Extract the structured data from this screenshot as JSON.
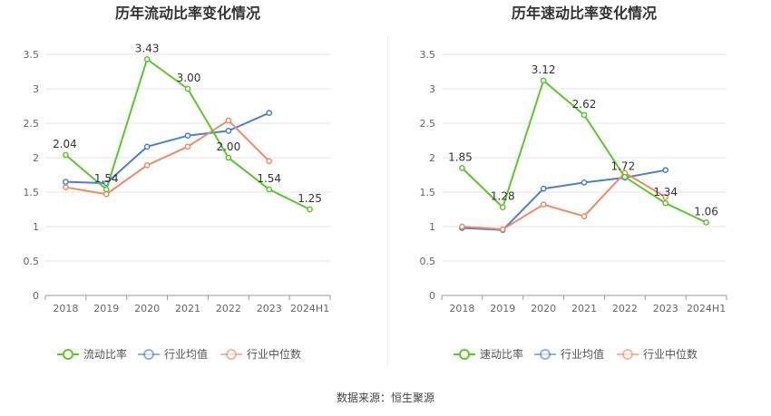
{
  "source_label": "数据来源：恒生聚源",
  "colors": {
    "main": "#5cc72c",
    "avg": "#4a7fd6",
    "median": "#f08a63",
    "grid": "#e6e6e6",
    "axis": "#999999",
    "text": "#666666",
    "title": "#333333"
  },
  "chart_data": [
    {
      "type": "line",
      "title": "历年流动比率变化情况",
      "categories": [
        "2018",
        "2019",
        "2020",
        "2021",
        "2022",
        "2023",
        "2024H1"
      ],
      "ylim": [
        0,
        3.5
      ],
      "yticks": [
        "0",
        "0.5",
        "1",
        "1.5",
        "2",
        "2.5",
        "3",
        "3.5"
      ],
      "xlabel": "",
      "ylabel": "",
      "series": [
        {
          "name": "流动比率",
          "key": "main",
          "values": [
            2.04,
            1.54,
            3.43,
            3.0,
            2.0,
            1.54,
            1.25
          ],
          "labels": [
            "2.04",
            "1.54",
            "3.43",
            "3.00",
            "2.00",
            "1.54",
            "1.25"
          ]
        },
        {
          "name": "行业均值",
          "key": "avg",
          "values": [
            1.65,
            1.63,
            2.16,
            2.32,
            2.39,
            2.65,
            null
          ]
        },
        {
          "name": "行业中位数",
          "key": "median",
          "values": [
            1.57,
            1.47,
            1.89,
            2.16,
            2.54,
            1.95,
            null
          ]
        }
      ]
    },
    {
      "type": "line",
      "title": "历年速动比率变化情况",
      "categories": [
        "2018",
        "2019",
        "2020",
        "2021",
        "2022",
        "2023",
        "2024H1"
      ],
      "ylim": [
        0,
        3.5
      ],
      "yticks": [
        "0",
        "0.5",
        "1",
        "1.5",
        "2",
        "2.5",
        "3",
        "3.5"
      ],
      "xlabel": "",
      "ylabel": "",
      "series": [
        {
          "name": "速动比率",
          "key": "main",
          "values": [
            1.85,
            1.28,
            3.12,
            2.62,
            1.72,
            1.34,
            1.06
          ],
          "labels": [
            "1.85",
            "1.28",
            "3.12",
            "2.62",
            "1.72",
            "1.34",
            "1.06"
          ]
        },
        {
          "name": "行业均值",
          "key": "avg",
          "values": [
            0.98,
            0.95,
            1.55,
            1.64,
            1.71,
            1.82,
            null
          ]
        },
        {
          "name": "行业中位数",
          "key": "median",
          "values": [
            1.0,
            0.96,
            1.32,
            1.15,
            1.78,
            1.43,
            null
          ]
        }
      ]
    }
  ]
}
